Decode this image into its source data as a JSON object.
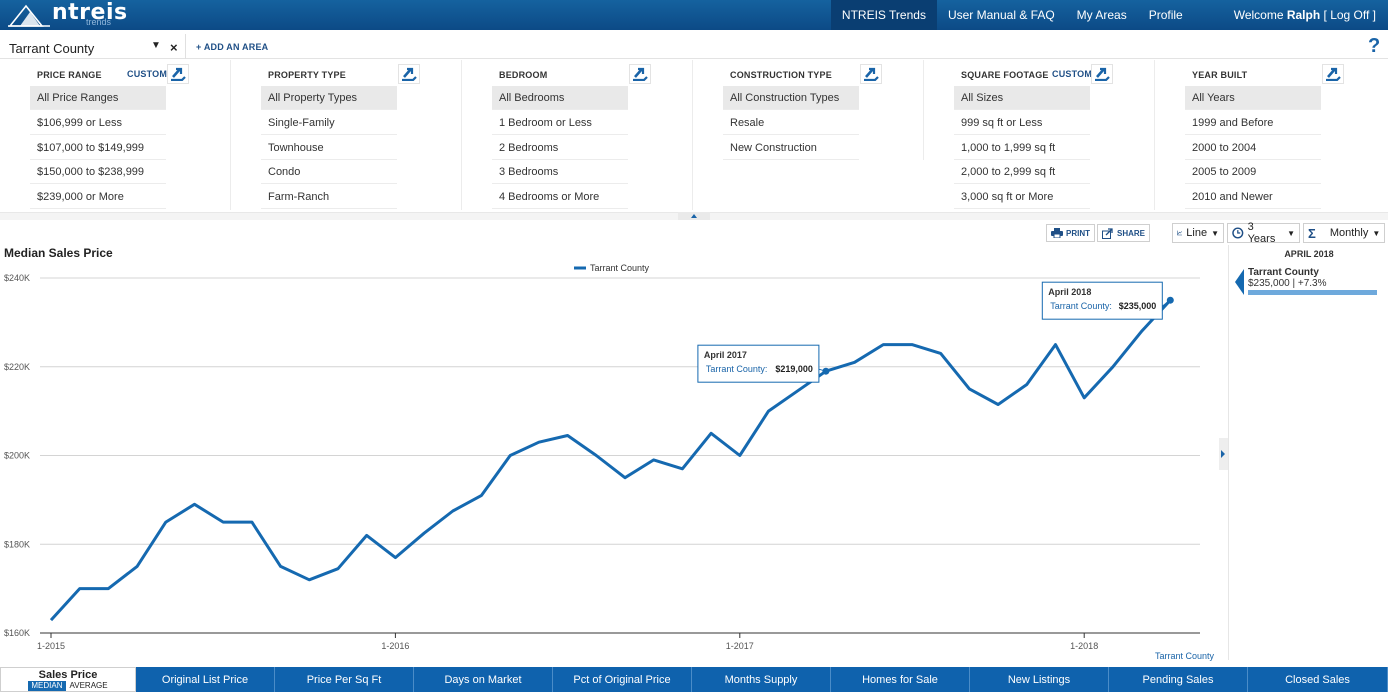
{
  "topnav": {
    "logo": "ntreis",
    "logo_sub": "trends",
    "items": [
      "NTREIS Trends",
      "User Manual & FAQ",
      "My Areas",
      "Profile"
    ],
    "active_index": 0,
    "welcome_prefix": "Welcome ",
    "user": "Ralph",
    "logoff": " [ Log Off ]"
  },
  "area": {
    "selected": "Tarrant County",
    "close": "×",
    "add_label": "+ ADD AN AREA",
    "help": "?"
  },
  "filters": [
    {
      "title": "PRICE RANGE",
      "custom": "CUSTOM",
      "options": [
        "All Price Ranges",
        "$106,999 or Less",
        "$107,000 to $149,999",
        "$150,000 to $238,999",
        "$239,000 or More"
      ]
    },
    {
      "title": "PROPERTY TYPE",
      "custom": "",
      "options": [
        "All Property Types",
        "Single-Family",
        "Townhouse",
        "Condo",
        "Farm-Ranch"
      ]
    },
    {
      "title": "BEDROOM",
      "custom": "",
      "options": [
        "All Bedrooms",
        "1 Bedroom or Less",
        "2 Bedrooms",
        "3 Bedrooms",
        "4 Bedrooms or More"
      ]
    },
    {
      "title": "CONSTRUCTION TYPE",
      "custom": "",
      "options": [
        "All Construction Types",
        "Resale",
        "New Construction"
      ]
    },
    {
      "title": "SQUARE FOOTAGE",
      "custom": "CUSTOM",
      "options": [
        "All Sizes",
        "999 sq ft or Less",
        "1,000 to 1,999 sq ft",
        "2,000 to 2,999 sq ft",
        "3,000 sq ft or More"
      ]
    },
    {
      "title": "YEAR BUILT",
      "custom": "",
      "options": [
        "All Years",
        "1999 and Before",
        "2000 to 2004",
        "2005 to 2009",
        "2010 and Newer"
      ]
    }
  ],
  "toolbar": {
    "print": "PRINT",
    "share": "SHARE",
    "chart_type": "Line",
    "period": "3 Years",
    "interval": "Monthly"
  },
  "chart_title": "Median Sales Price",
  "chart_data": {
    "type": "line",
    "title": "Median Sales Price",
    "x_start": "2015-01",
    "x_ticks": [
      "1-2015",
      "1-2016",
      "1-2017",
      "1-2018"
    ],
    "y_ticks": [
      "$160K",
      "$180K",
      "$200K",
      "$220K",
      "$240K"
    ],
    "ylim": [
      160000,
      240000
    ],
    "grid": true,
    "legend_position": "top-center",
    "x_axis_caption": "Tarrant County",
    "series": [
      {
        "name": "Tarrant County",
        "color": "#1569b0",
        "values": [
          162900,
          170000,
          170000,
          175000,
          185000,
          189000,
          185000,
          185000,
          175000,
          172000,
          174500,
          182000,
          177000,
          182500,
          187500,
          191000,
          200000,
          203000,
          204500,
          200000,
          195000,
          199000,
          197000,
          205000,
          200000,
          210000,
          214500,
          219000,
          221000,
          225000,
          225000,
          223000,
          215000,
          211500,
          216000,
          225000,
          213000,
          220000,
          228000,
          235000
        ]
      }
    ],
    "tooltips": [
      {
        "date": "April 2017",
        "label": "Tarrant County:",
        "value": "$219,000",
        "index": 27
      },
      {
        "date": "April 2018",
        "label": "Tarrant County:",
        "value": "$235,000",
        "index": 39
      }
    ]
  },
  "right_panel": {
    "date": "APRIL 2018",
    "name": "Tarrant County",
    "value": "$235,000 | +7.3%",
    "bar_fraction": 1.0
  },
  "tabs": {
    "active": {
      "title": "Sales Price",
      "median": "MEDIAN",
      "average": "AVERAGE"
    },
    "items": [
      "Original List Price",
      "Price Per Sq Ft",
      "Days on Market",
      "Pct of Original Price",
      "Months Supply",
      "Homes for Sale",
      "New Listings",
      "Pending Sales",
      "Closed Sales"
    ]
  }
}
